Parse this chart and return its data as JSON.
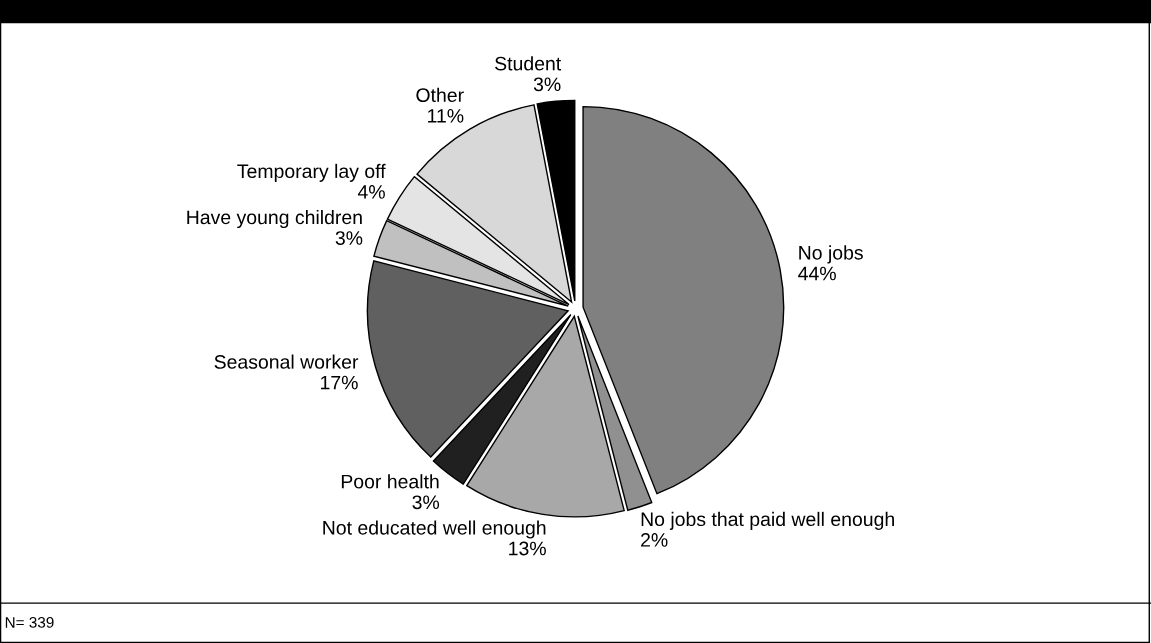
{
  "chart_data": {
    "type": "pie",
    "categories": [
      "No jobs",
      "No jobs that paid well enough",
      "Not educated well enough",
      "Poor health",
      "Seasonal worker",
      "Have young children",
      "Temporary lay off",
      "Other",
      "Student"
    ],
    "values": [
      44,
      2,
      13,
      3,
      17,
      3,
      4,
      11,
      3
    ],
    "colors": [
      "#808080",
      "#909090",
      "#a8a8a8",
      "#202020",
      "#606060",
      "#c0c0c0",
      "#e4e4e4",
      "#d8d8d8",
      "#000000"
    ],
    "value_labels": [
      "44%",
      "2%",
      "13%",
      "3%",
      "17%",
      "3%",
      "4%",
      "11%",
      "3%"
    ],
    "annotations": [
      "N= 339"
    ],
    "legend": false
  }
}
